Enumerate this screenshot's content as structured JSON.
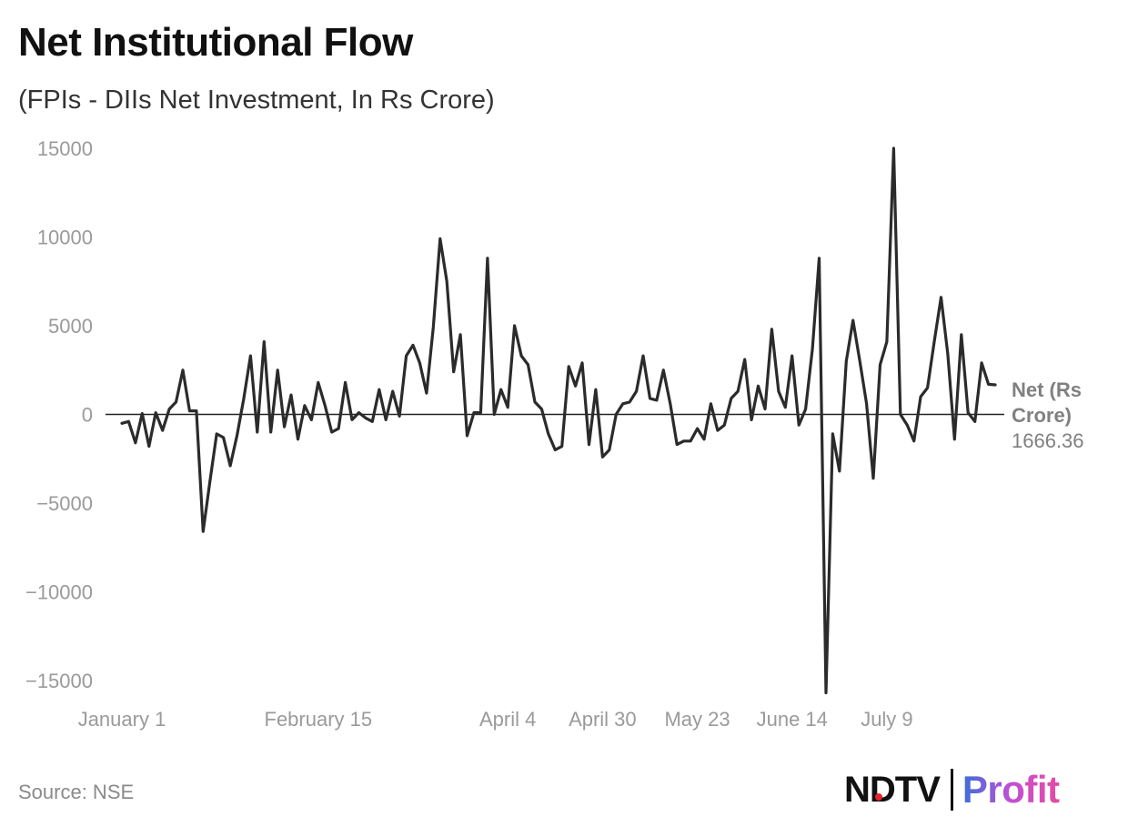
{
  "title": "Net Institutional Flow",
  "subtitle": "(FPIs - DIIs Net Investment, In Rs Crore)",
  "source": "Source: NSE",
  "logo": {
    "ndtv": "NDTV",
    "profit": "Profit"
  },
  "colors": {
    "line": "#2b2b2b",
    "axis": "#9a9a9a",
    "zero_line": "#222222",
    "label": "#808080",
    "ndtv_dot": "#e5262a",
    "profit_gradient": [
      "#3b6fd8",
      "#c24fd6",
      "#e64aa0"
    ]
  },
  "chart_data": {
    "type": "line",
    "title": "Net Institutional Flow",
    "subtitle": "(FPIs - DIIs Net Investment, In Rs Crore)",
    "ylim": [
      -15000,
      15000
    ],
    "yticks": [
      15000,
      10000,
      5000,
      0,
      -5000,
      -10000,
      -15000
    ],
    "ytick_labels": [
      "15000",
      "10000",
      "5000",
      "0",
      "−5000",
      "−10000",
      "−15000"
    ],
    "xticks": [
      {
        "label": "January 1",
        "index": 0
      },
      {
        "label": "February 15",
        "index": 29
      },
      {
        "label": "April 4",
        "index": 57
      },
      {
        "label": "April 30",
        "index": 71
      },
      {
        "label": "May 23",
        "index": 85
      },
      {
        "label": "June 14",
        "index": 99
      },
      {
        "label": "July 9",
        "index": 113
      }
    ],
    "grid": false,
    "series": [
      {
        "name": "Net (Rs Crore)",
        "last_value": "1666.36",
        "values": [
          -500,
          -400,
          -1600,
          50,
          -1800,
          100,
          -900,
          300,
          700,
          2500,
          200,
          200,
          -6600,
          -3800,
          -1100,
          -1300,
          -2900,
          -1200,
          900,
          3300,
          -1000,
          4100,
          -1000,
          2500,
          -700,
          1100,
          -1400,
          500,
          -300,
          1800,
          500,
          -1000,
          -800,
          1800,
          -300,
          100,
          -200,
          -400,
          1400,
          -300,
          1300,
          -100,
          3300,
          3900,
          2900,
          1200,
          4900,
          9900,
          7500,
          2400,
          4500,
          -1200,
          100,
          100,
          8800,
          0,
          1400,
          400,
          5000,
          3300,
          2800,
          700,
          300,
          -1100,
          -2000,
          -1800,
          2700,
          1600,
          2900,
          -1700,
          1400,
          -2400,
          -2000,
          0,
          600,
          700,
          1300,
          3300,
          900,
          800,
          2500,
          600,
          -1700,
          -1500,
          -1500,
          -800,
          -1400,
          600,
          -900,
          -600,
          900,
          1300,
          3100,
          -300,
          1600,
          300,
          4800,
          1300,
          400,
          3300,
          -600,
          300,
          3700,
          8800,
          -15700,
          -1100,
          -3200,
          3000,
          5300,
          3000,
          600,
          -3600,
          2800,
          4100,
          15000,
          0,
          -600,
          -1500,
          1000,
          1500,
          4100,
          6600,
          3400,
          -1400,
          4500,
          100,
          -400,
          2900,
          1700,
          1666.36
        ]
      }
    ]
  }
}
